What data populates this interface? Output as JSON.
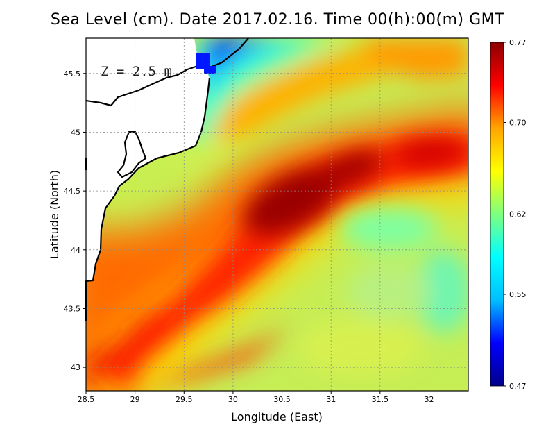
{
  "chart_data": {
    "type": "heatmap",
    "title": "Sea Level (cm). Date 2017.02.16. Time 00(h):00(m) GMT",
    "xlabel": "Longitude (East)",
    "ylabel": "Latitude (North)",
    "annotation": "Z = 2.5 m",
    "xlim": [
      28.5,
      32.4
    ],
    "ylim": [
      42.8,
      45.8
    ],
    "xticks": [
      "28.5",
      "29",
      "29.5",
      "30",
      "30.5",
      "31",
      "31.5",
      "32"
    ],
    "yticks": [
      "43",
      "43.5",
      "44",
      "44.5",
      "45",
      "45.5"
    ],
    "grid": true,
    "colorbar": {
      "min": 0.47,
      "max": 0.77,
      "ticks": [
        "0.77",
        "0.70",
        "0.62",
        "0.55",
        "0.47"
      ],
      "colormap": [
        "#00008b",
        "#0000ff",
        "#00bfff",
        "#00ffff",
        "#7fff7f",
        "#ffff00",
        "#ffa500",
        "#ff0000",
        "#8b0000"
      ]
    },
    "field_description": {
      "max_ridge": {
        "lon": 30.6,
        "lat": 44.5,
        "value": 0.77
      },
      "min_region": {
        "lon": 29.9,
        "lat": 45.75,
        "value": 0.47
      }
    }
  }
}
